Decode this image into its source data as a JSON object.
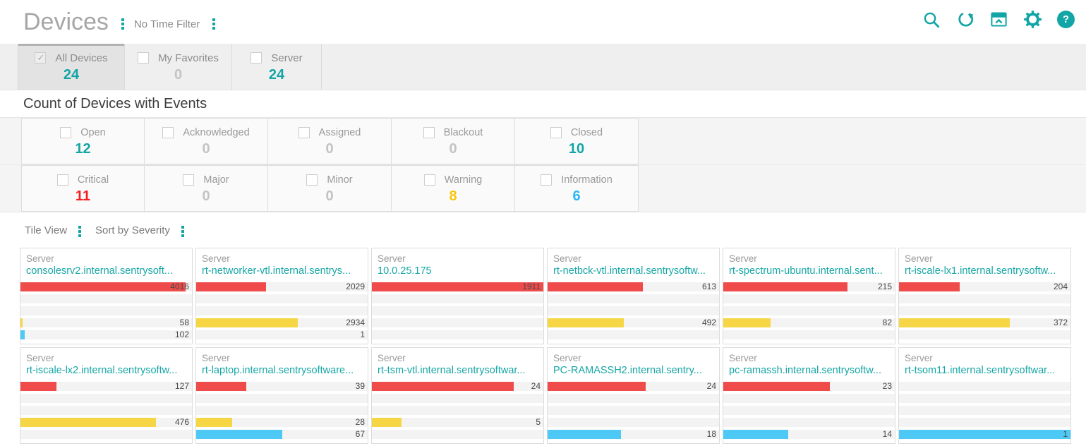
{
  "header": {
    "title": "Devices",
    "time_filter_label": "No Time Filter",
    "icons": [
      "search-icon",
      "refresh-icon",
      "collapse-panel-icon",
      "settings-gear-icon",
      "help-icon"
    ]
  },
  "colors": {
    "accent_teal": "#12a5a5",
    "count_muted": "#c3c3c3",
    "count_critical": "#f32222",
    "count_warning": "#f7c608",
    "count_information": "#29b6f6",
    "bar_critical": "#ef4b4b",
    "bar_warning": "#f6d645",
    "bar_information": "#4ec9f5"
  },
  "tabs": [
    {
      "label": "All Devices",
      "count": "24",
      "checked": true,
      "selected": true,
      "count_color": "#12a5a5"
    },
    {
      "label": "My Favorites",
      "count": "0",
      "checked": false,
      "selected": false,
      "count_color": "#c3c3c3"
    },
    {
      "label": "Server",
      "count": "24",
      "checked": false,
      "selected": false,
      "count_color": "#12a5a5"
    }
  ],
  "section": {
    "title": "Count of Devices with Events"
  },
  "status_filters": [
    {
      "label": "Open",
      "count": "12",
      "checked": false,
      "count_color": "#12a5a5"
    },
    {
      "label": "Acknowledged",
      "count": "0",
      "checked": false,
      "count_color": "#c3c3c3"
    },
    {
      "label": "Assigned",
      "count": "0",
      "checked": false,
      "count_color": "#c3c3c3"
    },
    {
      "label": "Blackout",
      "count": "0",
      "checked": false,
      "count_color": "#c3c3c3"
    },
    {
      "label": "Closed",
      "count": "10",
      "checked": false,
      "count_color": "#12a5a5"
    }
  ],
  "severity_filters": [
    {
      "label": "Critical",
      "count": "11",
      "checked": false,
      "count_color": "#f32222"
    },
    {
      "label": "Major",
      "count": "0",
      "checked": false,
      "count_color": "#c3c3c3"
    },
    {
      "label": "Minor",
      "count": "0",
      "checked": false,
      "count_color": "#c3c3c3"
    },
    {
      "label": "Warning",
      "count": "8",
      "checked": false,
      "count_color": "#f7c608"
    },
    {
      "label": "Information",
      "count": "6",
      "checked": false,
      "count_color": "#29b6f6"
    }
  ],
  "view_bar": {
    "view_label": "Tile View",
    "sort_label": "Sort by Severity"
  },
  "severity_rows": [
    {
      "key": "critical",
      "color": "#ef4b4b"
    },
    {
      "key": "major",
      "color": ""
    },
    {
      "key": "minor",
      "color": ""
    },
    {
      "key": "warning",
      "color": "#f6d645"
    },
    {
      "key": "information",
      "color": "#4ec9f5"
    }
  ],
  "tiles": [
    {
      "type": "Server",
      "name": "consolesrv2.internal.sentrysoft...",
      "values": {
        "critical": 4016,
        "major": null,
        "minor": null,
        "warning": 58,
        "information": 102
      }
    },
    {
      "type": "Server",
      "name": "rt-networker-vtl.internal.sentrys...",
      "values": {
        "critical": 2029,
        "major": null,
        "minor": null,
        "warning": 2934,
        "information": 1
      }
    },
    {
      "type": "Server",
      "name": "10.0.25.175",
      "values": {
        "critical": 1911,
        "major": null,
        "minor": null,
        "warning": null,
        "information": null
      }
    },
    {
      "type": "Server",
      "name": "rt-netbck-vtl.internal.sentrysoftw...",
      "values": {
        "critical": 613,
        "major": null,
        "minor": null,
        "warning": 492,
        "information": null
      }
    },
    {
      "type": "Server",
      "name": "rt-spectrum-ubuntu.internal.sent...",
      "values": {
        "critical": 215,
        "major": null,
        "minor": null,
        "warning": 82,
        "information": null
      }
    },
    {
      "type": "Server",
      "name": "rt-iscale-lx1.internal.sentrysoftw...",
      "values": {
        "critical": 204,
        "major": null,
        "minor": null,
        "warning": 372,
        "information": null
      }
    },
    {
      "type": "Server",
      "name": "rt-iscale-lx2.internal.sentrysoftw...",
      "values": {
        "critical": 127,
        "major": null,
        "minor": null,
        "warning": 476,
        "information": null
      }
    },
    {
      "type": "Server",
      "name": "rt-laptop.internal.sentrysoftware...",
      "values": {
        "critical": 39,
        "major": null,
        "minor": null,
        "warning": 28,
        "information": 67
      }
    },
    {
      "type": "Server",
      "name": "rt-tsm-vtl.internal.sentrysoftwar...",
      "values": {
        "critical": 24,
        "major": null,
        "minor": null,
        "warning": 5,
        "information": null
      }
    },
    {
      "type": "Server",
      "name": "PC-RAMASSH2.internal.sentry...",
      "values": {
        "critical": 24,
        "major": null,
        "minor": null,
        "warning": null,
        "information": 18
      }
    },
    {
      "type": "Server",
      "name": "pc-ramassh.internal.sentrysoftw...",
      "values": {
        "critical": 23,
        "major": null,
        "minor": null,
        "warning": null,
        "information": 14
      }
    },
    {
      "type": "Server",
      "name": "rt-tsom11.internal.sentrysoftwar...",
      "values": {
        "critical": null,
        "major": null,
        "minor": null,
        "warning": null,
        "information": 1
      }
    }
  ]
}
